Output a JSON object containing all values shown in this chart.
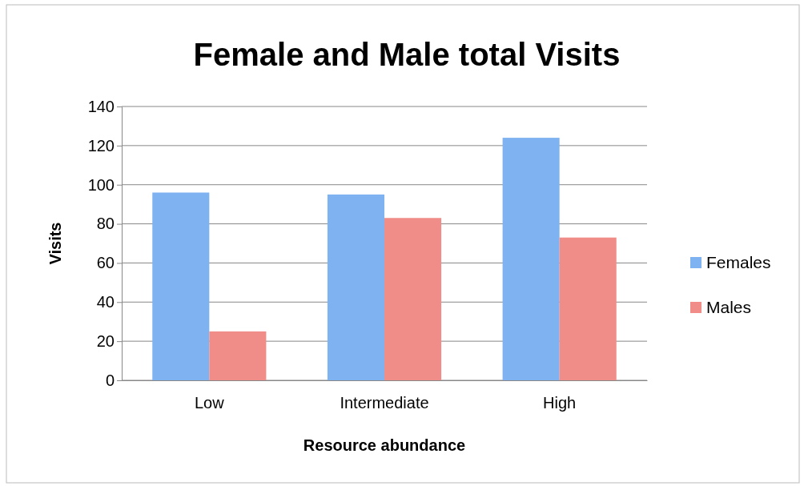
{
  "chart_data": {
    "type": "bar",
    "title": "Female and Male total Visits",
    "xlabel": "Resource abundance",
    "ylabel": "Visits",
    "categories": [
      "Low",
      "Intermediate",
      "High"
    ],
    "series": [
      {
        "name": "Females",
        "color": "#7fb2f0",
        "values": [
          96,
          95,
          124
        ]
      },
      {
        "name": "Males",
        "color": "#f08d88",
        "values": [
          25,
          83,
          73
        ]
      }
    ],
    "ylim": [
      0,
      140
    ],
    "yticks": [
      0,
      20,
      40,
      60,
      80,
      100,
      120,
      140
    ],
    "grid": "y",
    "legend": "right"
  }
}
